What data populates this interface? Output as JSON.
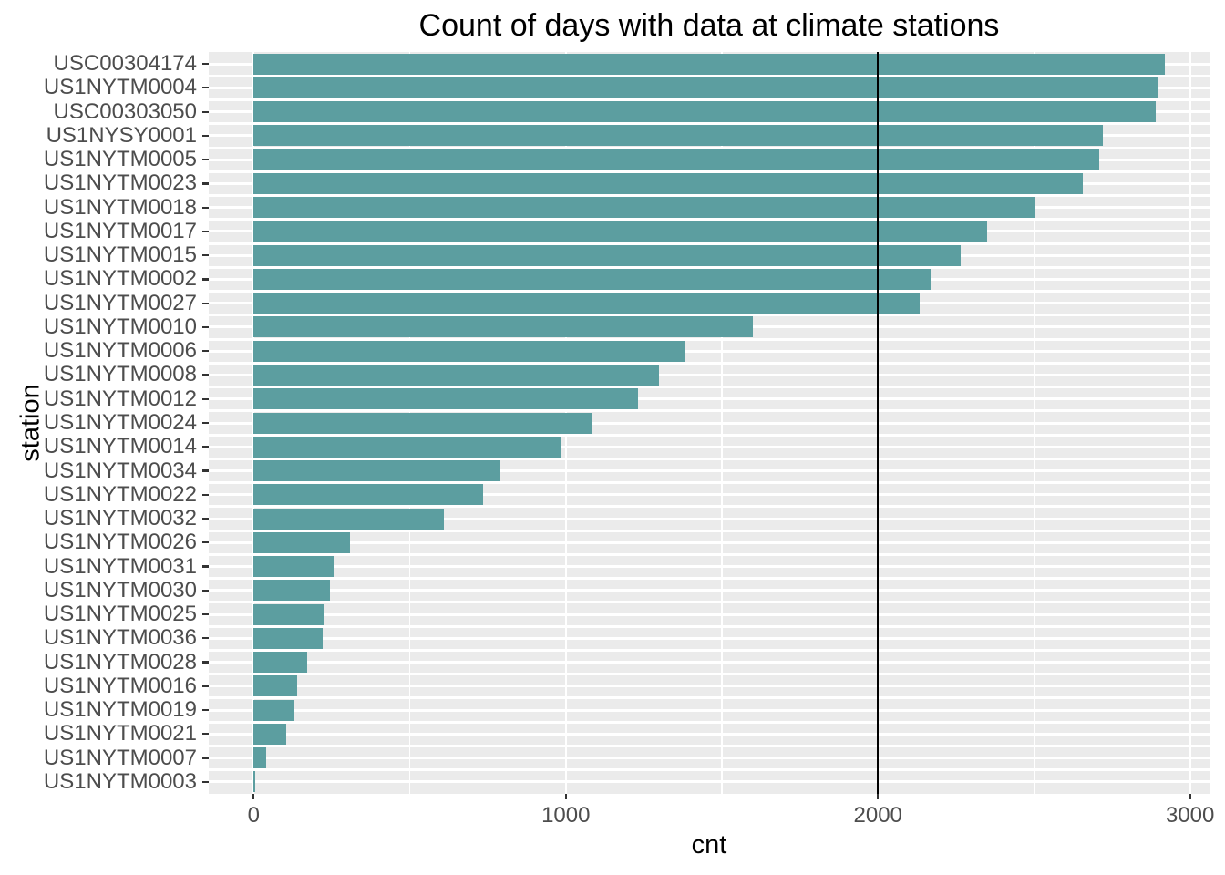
{
  "title": "Count of days with data at climate stations",
  "colors": {
    "bar_fill": "#5C9EA0",
    "panel_background": "#EBEBEB",
    "gridline": "#FFFFFF",
    "axis_tick_text": "#4D4D4D",
    "tick_mark": "#333333",
    "reference_line": "#000000",
    "title_text": "#000000"
  },
  "chart_data": {
    "type": "bar",
    "orientation": "horizontal",
    "title": "Count of days with data at climate stations",
    "xlabel": "cnt",
    "ylabel": "station",
    "xlim": [
      0,
      3000
    ],
    "x_major_ticks": [
      0,
      1000,
      2000,
      3000
    ],
    "x_minor_gridlines": [
      500,
      1500,
      2500
    ],
    "grid": "white-on-gray",
    "legend": "none",
    "reference_vline_x": 2000,
    "categories": [
      "USC00304174",
      "US1NYTM0004",
      "USC00303050",
      "US1NYSY0001",
      "US1NYTM0005",
      "US1NYTM0023",
      "US1NYTM0018",
      "US1NYTM0017",
      "US1NYTM0015",
      "US1NYTM0002",
      "US1NYTM0027",
      "US1NYTM0010",
      "US1NYTM0006",
      "US1NYTM0008",
      "US1NYTM0012",
      "US1NYTM0024",
      "US1NYTM0014",
      "US1NYTM0034",
      "US1NYTM0022",
      "US1NYTM0032",
      "US1NYTM0026",
      "US1NYTM0031",
      "US1NYTM0030",
      "US1NYTM0025",
      "US1NYTM0036",
      "US1NYTM0028",
      "US1NYTM0016",
      "US1NYTM0019",
      "US1NYTM0021",
      "US1NYTM0007",
      "US1NYTM0003"
    ],
    "values": [
      2920,
      2895,
      2890,
      2720,
      2710,
      2655,
      2505,
      2350,
      2265,
      2170,
      2135,
      1600,
      1380,
      1300,
      1230,
      1085,
      985,
      790,
      735,
      610,
      310,
      255,
      245,
      225,
      220,
      170,
      140,
      130,
      105,
      40,
      6
    ]
  }
}
